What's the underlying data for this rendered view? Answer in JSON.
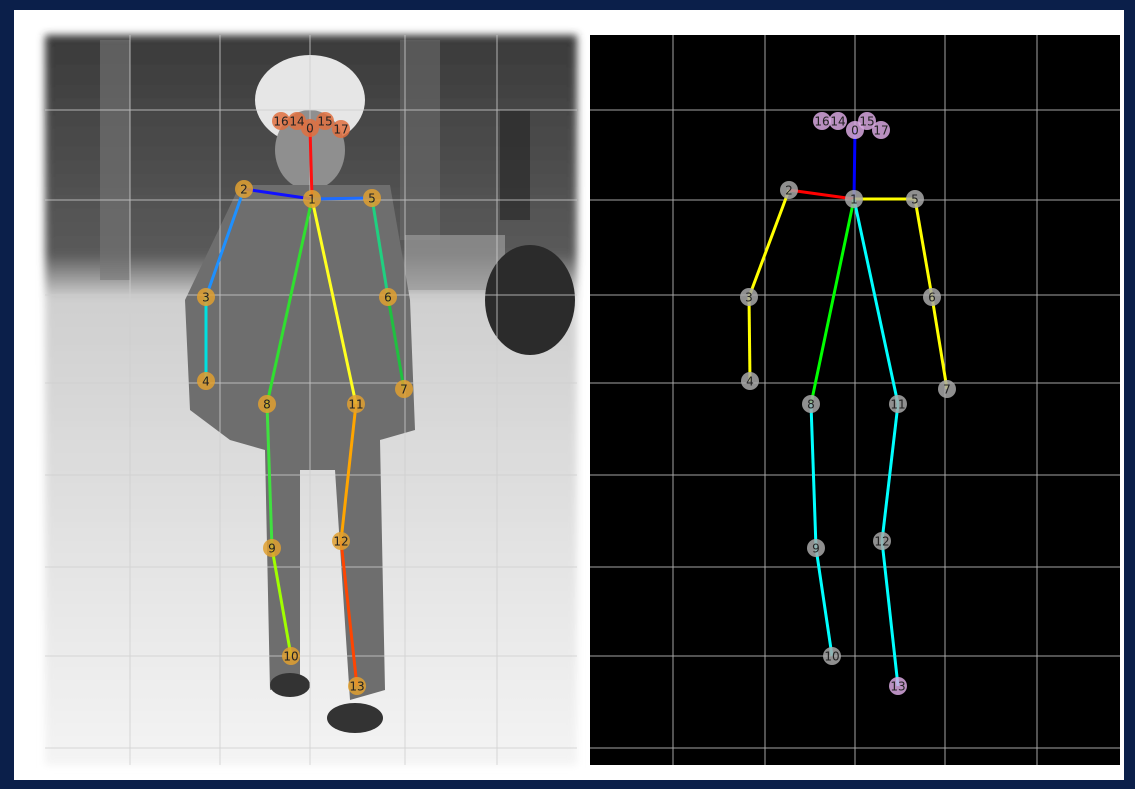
{
  "panels": [
    {
      "keypoints": [
        "0",
        "1",
        "2",
        "3",
        "4",
        "5",
        "6",
        "7",
        "8",
        "9",
        "10",
        "11",
        "12",
        "13",
        "14",
        "15",
        "16",
        "17"
      ]
    },
    {
      "keypoints": [
        "0",
        "1",
        "2",
        "3",
        "4",
        "5",
        "6",
        "7",
        "8",
        "9",
        "10",
        "11",
        "12",
        "13",
        "14",
        "15",
        "16",
        "17"
      ]
    }
  ]
}
